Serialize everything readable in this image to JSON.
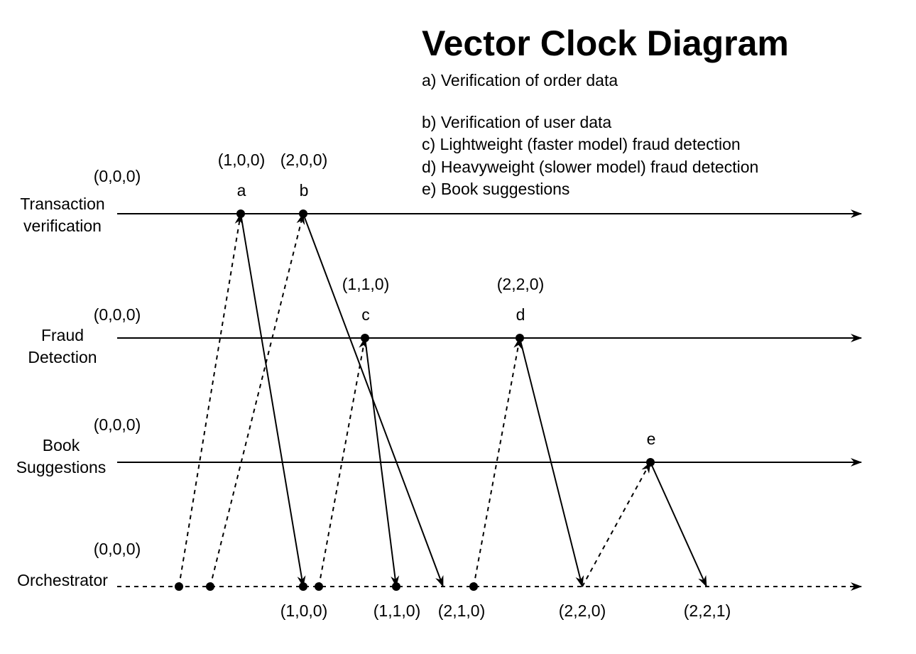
{
  "title": "Vector Clock Diagram",
  "legend": [
    "a) Verification of order data",
    "b) Verification of user data",
    "c) Lightweight (faster model) fraud detection",
    "d) Heavyweight (slower model) fraud detection",
    "e) Book suggestions"
  ],
  "processes": [
    {
      "id": "tv",
      "label_lines": [
        "Transaction",
        "verification"
      ],
      "initial": "(0,0,0)"
    },
    {
      "id": "fd",
      "label_lines": [
        "Fraud",
        "Detection"
      ],
      "initial": "(0,0,0)"
    },
    {
      "id": "bs",
      "label_lines": [
        "Book",
        "Suggestions"
      ],
      "initial": "(0,0,0)"
    },
    {
      "id": "or",
      "label_lines": [
        "Orchestrator"
      ],
      "initial": "(0,0,0)"
    }
  ],
  "events": [
    {
      "id": "a",
      "process": "tv",
      "label": "a",
      "clock": "(1,0,0)"
    },
    {
      "id": "b",
      "process": "tv",
      "label": "b",
      "clock": "(2,0,0)"
    },
    {
      "id": "c",
      "process": "fd",
      "label": "c",
      "clock": "(1,1,0)"
    },
    {
      "id": "d",
      "process": "fd",
      "label": "d",
      "clock": "(2,2,0)"
    },
    {
      "id": "e",
      "process": "bs",
      "label": "e",
      "clock": ""
    },
    {
      "id": "o1",
      "process": "or",
      "label": "",
      "clock": ""
    },
    {
      "id": "o2",
      "process": "or",
      "label": "",
      "clock": ""
    },
    {
      "id": "o3",
      "process": "or",
      "label": "",
      "clock": "(1,0,0)"
    },
    {
      "id": "o4",
      "process": "or",
      "label": "",
      "clock": ""
    },
    {
      "id": "o5",
      "process": "or",
      "label": "",
      "clock": "(1,1,0)"
    },
    {
      "id": "o6",
      "process": "or",
      "label": "",
      "clock": ""
    }
  ],
  "orchestrator_receive_clocks": [
    {
      "id": "r_b",
      "clock": "(2,1,0)"
    },
    {
      "id": "r_d",
      "clock": "(2,2,0)"
    },
    {
      "id": "r_e",
      "clock": "(2,2,1)"
    }
  ],
  "messages": [
    {
      "from": "o1",
      "to": "a",
      "style": "dashed"
    },
    {
      "from": "o2",
      "to": "b",
      "style": "dashed"
    },
    {
      "from": "a",
      "to": "o3",
      "style": "solid"
    },
    {
      "from": "o4",
      "to": "c",
      "style": "dashed"
    },
    {
      "from": "c",
      "to": "o5",
      "style": "solid"
    },
    {
      "from": "b",
      "to": "r_b",
      "style": "solid"
    },
    {
      "from": "o6",
      "to": "d",
      "style": "dashed"
    },
    {
      "from": "d",
      "to": "r_d",
      "style": "solid"
    },
    {
      "from": "r_d",
      "to": "e",
      "style": "dashed"
    },
    {
      "from": "e",
      "to": "r_e",
      "style": "solid"
    }
  ]
}
